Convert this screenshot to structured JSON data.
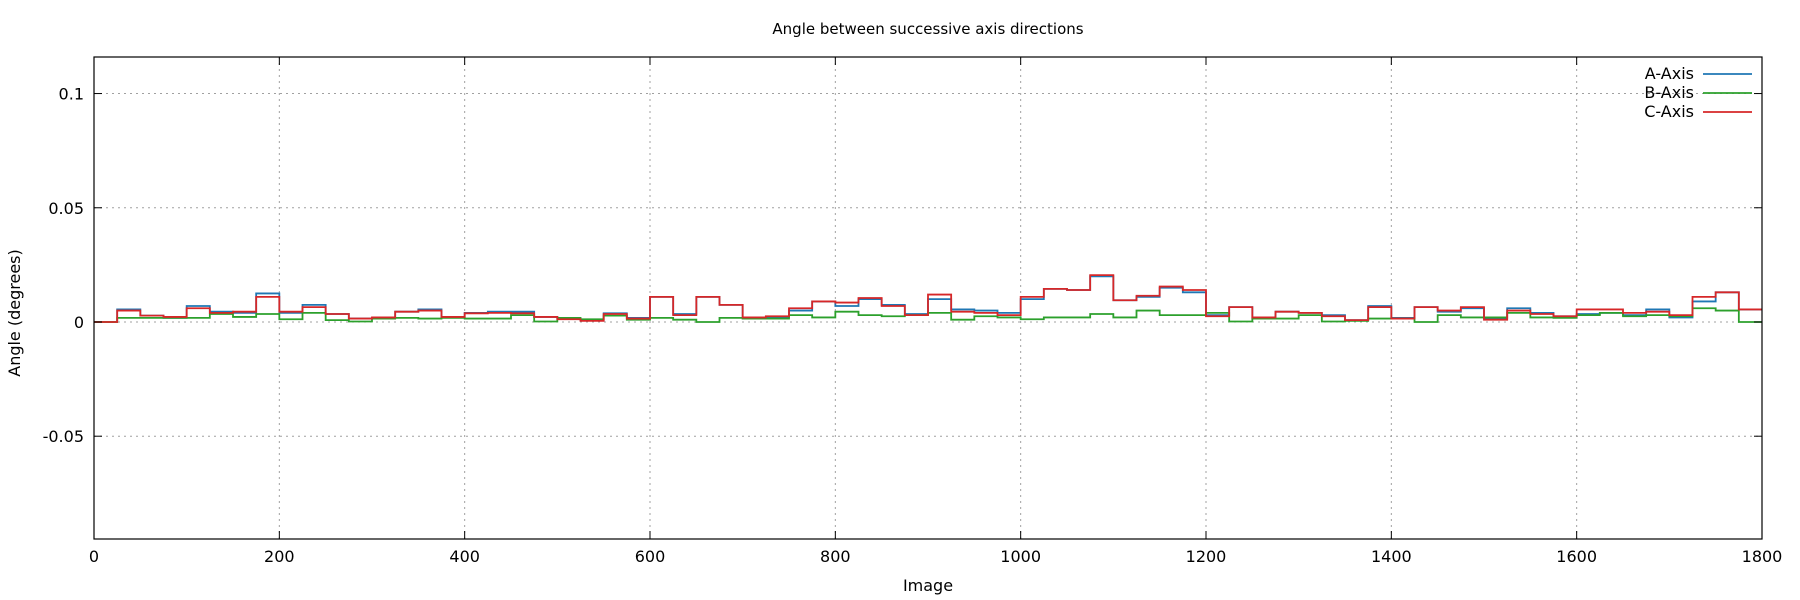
{
  "chart_data": {
    "type": "line",
    "title": "Angle between successive axis directions",
    "xlabel": "Image",
    "ylabel": "Angle (degrees)",
    "xlim": [
      0,
      1800
    ],
    "ylim": [
      -0.095,
      0.116
    ],
    "xticks": [
      0,
      200,
      400,
      600,
      800,
      1000,
      1200,
      1400,
      1600,
      1800
    ],
    "xtick_labels": [
      "0",
      "200",
      "400",
      "600",
      "800",
      "1000",
      "1200",
      "1400",
      "1600",
      "1800"
    ],
    "yticks": [
      -0.05,
      0,
      0.05,
      0.1
    ],
    "ytick_labels": [
      "-0.05",
      "0",
      "0.05",
      "0.1"
    ],
    "grid": true,
    "legend_position": "top-right",
    "step_width": 25,
    "series": [
      {
        "name": "A-Axis",
        "color": "#1f77b4",
        "values": [
          0,
          0.0055,
          0.0028,
          0.0018,
          0.007,
          0.0045,
          0.004,
          0.0125,
          0.004,
          0.0075,
          0.0035,
          0.0015,
          0.0018,
          0.0045,
          0.0055,
          0.002,
          0.004,
          0.0045,
          0.0045,
          0.0022,
          0.0015,
          0.0008,
          0.0038,
          0.0018,
          0.011,
          0.0035,
          0.011,
          0.0075,
          0.0015,
          0.002,
          0.005,
          0.009,
          0.007,
          0.01,
          0.0075,
          0.0035,
          0.01,
          0.0055,
          0.005,
          0.004,
          0.01,
          0.0145,
          0.014,
          0.02,
          0.0095,
          0.011,
          0.015,
          0.013,
          0.003,
          0.0065,
          0.0015,
          0.0045,
          0.004,
          0.003,
          0.0008,
          0.007,
          0.0018,
          0.0065,
          0.0045,
          0.006,
          0.0015,
          0.006,
          0.004,
          0.0025,
          0.0035,
          0.004,
          0.003,
          0.0055,
          0.002,
          0.009,
          0.013,
          0.0055
        ]
      },
      {
        "name": "B-Axis",
        "color": "#2ca02c",
        "values": [
          0,
          0.0018,
          0.0018,
          0.0018,
          0.0018,
          0.0035,
          0.0022,
          0.0035,
          0.0012,
          0.004,
          0.0008,
          0.0002,
          0.0015,
          0.0018,
          0.0015,
          0.0018,
          0.0015,
          0.0015,
          0.003,
          0.0002,
          0.0018,
          0.0012,
          0.0028,
          0.001,
          0.0018,
          0.001,
          0.0,
          0.0018,
          0.0015,
          0.0015,
          0.003,
          0.002,
          0.0045,
          0.003,
          0.0025,
          0.003,
          0.004,
          0.001,
          0.0025,
          0.002,
          0.0012,
          0.002,
          0.002,
          0.0035,
          0.002,
          0.005,
          0.003,
          0.003,
          0.004,
          0.0002,
          0.0015,
          0.0015,
          0.003,
          0.0002,
          0.0005,
          0.0015,
          0.0015,
          0.0,
          0.003,
          0.002,
          0.002,
          0.004,
          0.002,
          0.0018,
          0.003,
          0.004,
          0.0025,
          0.003,
          0.0025,
          0.006,
          0.005,
          0.0
        ]
      },
      {
        "name": "C-Axis",
        "color": "#d62728",
        "values": [
          0,
          0.005,
          0.0028,
          0.0022,
          0.006,
          0.004,
          0.0045,
          0.011,
          0.0045,
          0.0065,
          0.0035,
          0.0015,
          0.002,
          0.0045,
          0.005,
          0.0022,
          0.0038,
          0.004,
          0.0038,
          0.0022,
          0.0012,
          0.0005,
          0.0035,
          0.0015,
          0.011,
          0.003,
          0.011,
          0.0075,
          0.002,
          0.0025,
          0.006,
          0.009,
          0.0085,
          0.0105,
          0.007,
          0.003,
          0.012,
          0.0045,
          0.004,
          0.003,
          0.011,
          0.0145,
          0.014,
          0.0205,
          0.0095,
          0.0115,
          0.0155,
          0.014,
          0.0025,
          0.0065,
          0.002,
          0.0045,
          0.004,
          0.0025,
          0.0008,
          0.0065,
          0.0015,
          0.0065,
          0.005,
          0.0065,
          0.001,
          0.005,
          0.0035,
          0.0025,
          0.0055,
          0.0055,
          0.004,
          0.0045,
          0.003,
          0.011,
          0.013,
          0.0055
        ]
      }
    ]
  }
}
